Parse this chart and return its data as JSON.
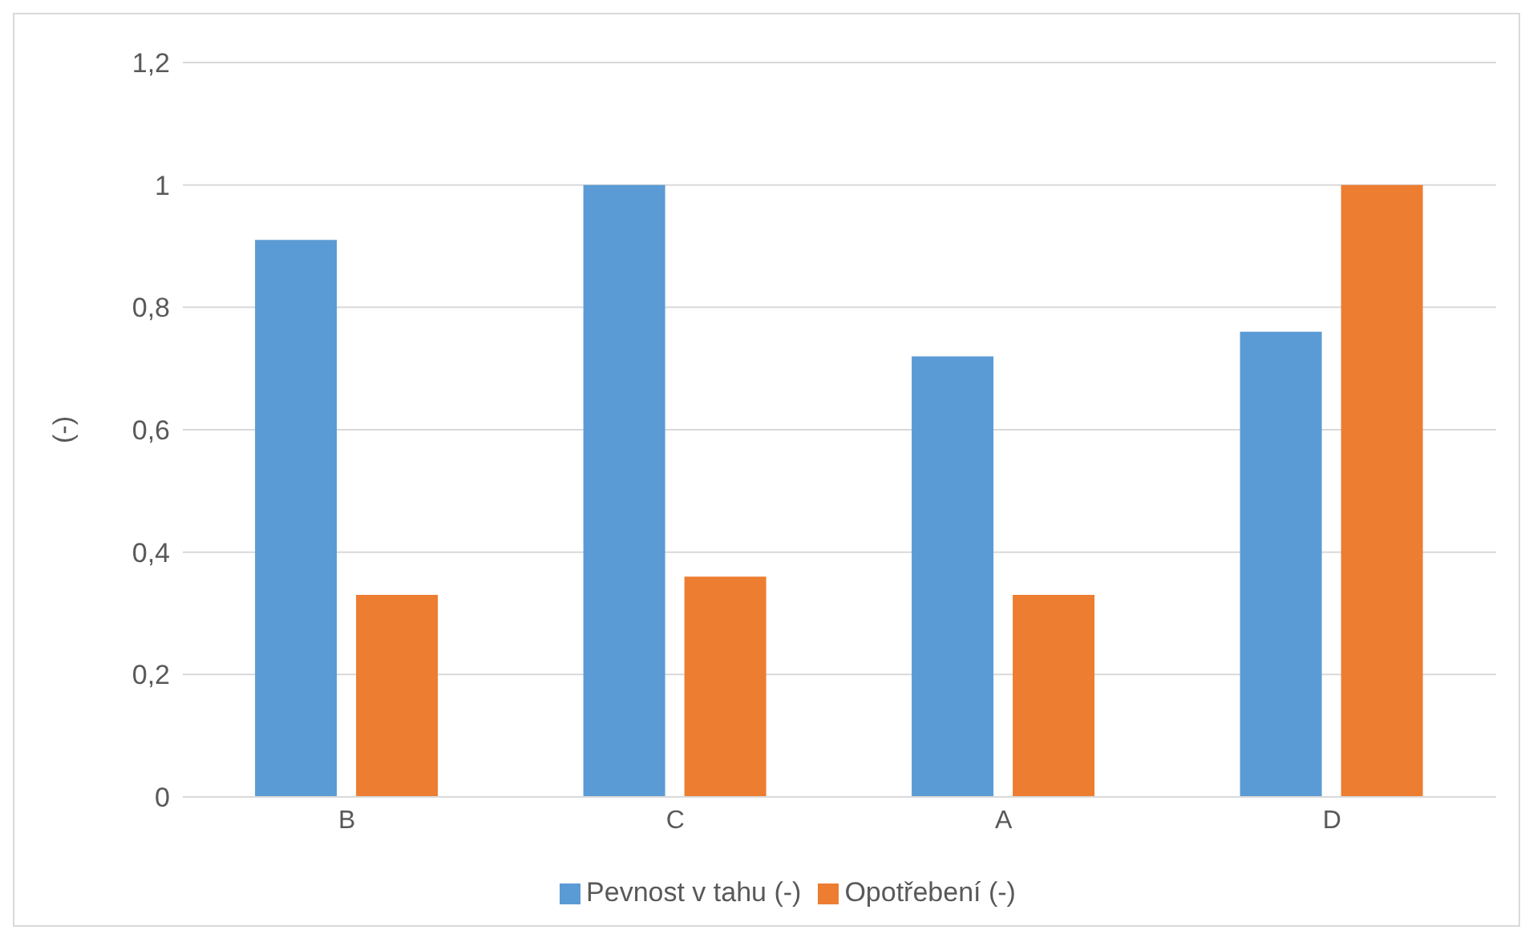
{
  "chart_data": {
    "type": "bar",
    "ylabel": "(-)",
    "categories": [
      "B",
      "C",
      "A",
      "D"
    ],
    "series": [
      {
        "name": "Pevnost v tahu (-)",
        "color": "#5b9bd5",
        "values": [
          0.91,
          1,
          0.72,
          0.76
        ]
      },
      {
        "name": "Opotřebení (-)",
        "color": "#ed7d31",
        "values": [
          0.33,
          0.36,
          0.33,
          1
        ]
      }
    ],
    "ylim": [
      0,
      1.2
    ],
    "yticks": [
      {
        "value": 0,
        "label": "0"
      },
      {
        "value": 0.2,
        "label": "0,2"
      },
      {
        "value": 0.4,
        "label": "0,4"
      },
      {
        "value": 0.6,
        "label": "0,6"
      },
      {
        "value": 0.8,
        "label": "0,8"
      },
      {
        "value": 1,
        "label": "1"
      },
      {
        "value": 1.2,
        "label": "1,2"
      }
    ],
    "grid": "y",
    "legend": "bottom"
  }
}
